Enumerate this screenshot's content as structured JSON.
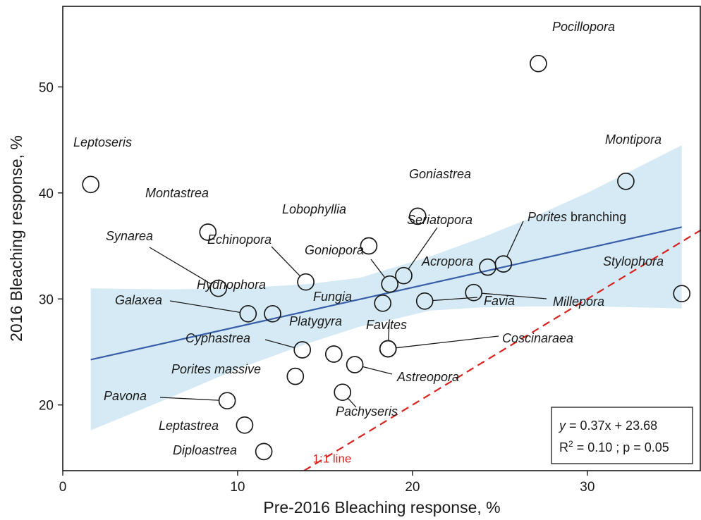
{
  "chart_data": {
    "type": "scatter",
    "title": "",
    "xlabel": "Pre-2016 Bleaching response, %",
    "ylabel": "2016 Bleaching response, %",
    "xlim": [
      0,
      36.5
    ],
    "ylim": [
      13.8,
      57.6
    ],
    "x_ticks": [
      0,
      10,
      20,
      30
    ],
    "y_ticks": [
      20,
      30,
      40,
      50
    ],
    "grid": false,
    "points": [
      {
        "genus": "Pocillopora",
        "x": 27.2,
        "y": 52.2
      },
      {
        "genus": "Leptoseris",
        "x": 1.6,
        "y": 40.8
      },
      {
        "genus": "Montipora",
        "x": 32.2,
        "y": 41.1
      },
      {
        "genus": "Goniastrea",
        "x": 20.3,
        "y": 37.8
      },
      {
        "genus": "Montastrea",
        "x": 8.3,
        "y": 36.3
      },
      {
        "genus": "Lobophyllia",
        "x": 17.5,
        "y": 35.0
      },
      {
        "genus": "Seriatopora",
        "x": 19.5,
        "y": 32.2
      },
      {
        "genus": "Porites",
        "genus_suffix": " branching",
        "x": 25.2,
        "y": 33.3
      },
      {
        "genus": "Acropora",
        "x": 24.3,
        "y": 33.0
      },
      {
        "genus": "Synarea",
        "x": 8.9,
        "y": 31.0
      },
      {
        "genus": "Echinopora",
        "x": 13.9,
        "y": 31.6
      },
      {
        "genus": "Goniopora",
        "x": 18.7,
        "y": 31.4
      },
      {
        "genus": "Stylophora",
        "x": 35.4,
        "y": 30.5
      },
      {
        "genus": "Millepora",
        "x": 23.5,
        "y": 30.6
      },
      {
        "genus": "Favia",
        "x": 20.7,
        "y": 29.8
      },
      {
        "genus": "Fungia",
        "x": 18.3,
        "y": 29.6
      },
      {
        "genus": "Galaxea",
        "x": 10.6,
        "y": 28.6
      },
      {
        "genus": "Hydnophora",
        "x": 12.0,
        "y": 28.6
      },
      {
        "genus": "Favites",
        "x": 18.6,
        "y": 25.3
      },
      {
        "genus": "Coscinaraea",
        "x": 18.6,
        "y": 25.3
      },
      {
        "genus": "Cyphastrea",
        "x": 13.7,
        "y": 25.2
      },
      {
        "genus": "Platygyra",
        "x": 15.5,
        "y": 24.8
      },
      {
        "genus": "Astreopora",
        "x": 16.7,
        "y": 23.8
      },
      {
        "genus": "Porites massive",
        "x": 13.3,
        "y": 22.7
      },
      {
        "genus": "Pachyseris",
        "x": 16.0,
        "y": 21.2
      },
      {
        "genus": "Pavona",
        "x": 9.4,
        "y": 20.4
      },
      {
        "genus": "Leptastrea",
        "x": 10.4,
        "y": 18.1
      },
      {
        "genus": "Diploastrea",
        "x": 11.5,
        "y": 15.6
      }
    ],
    "fit_line": {
      "slope": 0.37,
      "intercept": 23.68,
      "x_range": [
        1.6,
        35.4
      ]
    },
    "confidence_band": {
      "x": [
        1.6,
        6,
        10,
        14,
        17,
        19,
        21,
        24,
        27,
        30,
        33,
        35.4
      ],
      "lower": [
        17.6,
        20.6,
        23.4,
        25.8,
        27.4,
        28.1,
        28.9,
        29.2,
        29.3,
        29.3,
        29.2,
        29.1
      ],
      "upper": [
        31.0,
        30.9,
        31.0,
        31.4,
        32.0,
        33.0,
        34.0,
        35.8,
        37.8,
        40.0,
        42.5,
        44.5
      ]
    },
    "reference_line": {
      "label": "1:1 line",
      "slope": 1,
      "intercept": 0
    },
    "equation_box": {
      "line1": "y = 0.37x + 23.68",
      "line2": "R2 = 0.10 ; p = 0.05"
    },
    "colors": {
      "fit_line": "#3a5ea8",
      "band": "#d5eaf4",
      "reference": "#d9231e",
      "marker": "#1a1a1a"
    }
  }
}
